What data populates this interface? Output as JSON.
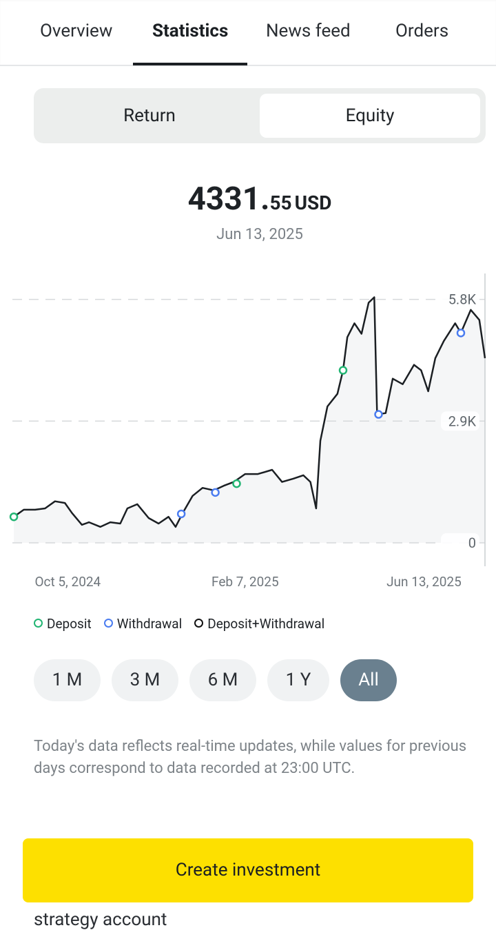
{
  "tabs": [
    "Overview",
    "Statistics",
    "News feed",
    "Orders"
  ],
  "active_tab": "Statistics",
  "toggle": {
    "options": [
      "Return",
      "Equity"
    ],
    "selected": "Equity"
  },
  "headline": {
    "value_main": "4331.",
    "value_fraction": "55",
    "currency": "USD",
    "date": "Jun 13, 2025"
  },
  "chart_data": {
    "type": "line",
    "color": "#1b1f23",
    "x": [
      "2024-08-28",
      "2024-09-04",
      "2024-09-12",
      "2024-09-19",
      "2024-09-26",
      "2024-10-03",
      "2024-10-08",
      "2024-10-15",
      "2024-10-20",
      "2024-10-28",
      "2024-11-04",
      "2024-11-11",
      "2024-11-16",
      "2024-11-23",
      "2024-12-01",
      "2024-12-08",
      "2024-12-15",
      "2024-12-20",
      "2024-12-25",
      "2025-01-01",
      "2025-01-08",
      "2025-01-16",
      "2025-01-23",
      "2025-01-30",
      "2025-02-07",
      "2025-02-16",
      "2025-02-26",
      "2025-03-05",
      "2025-03-13",
      "2025-03-20",
      "2025-03-25",
      "2025-03-29",
      "2025-04-01",
      "2025-04-06",
      "2025-04-13",
      "2025-04-17",
      "2025-04-20",
      "2025-04-25",
      "2025-04-30",
      "2025-05-05",
      "2025-05-09",
      "2025-05-11",
      "2025-05-17",
      "2025-05-22",
      "2025-05-29",
      "2025-06-06",
      "2025-06-11",
      "2025-06-16",
      "2025-06-21",
      "2025-06-27",
      "2025-07-05",
      "2025-07-09",
      "2025-07-16",
      "2025-07-22",
      "2025-07-26"
    ],
    "values": [
      620,
      790,
      790,
      820,
      990,
      950,
      710,
      430,
      490,
      380,
      490,
      460,
      820,
      920,
      590,
      460,
      620,
      380,
      710,
      1120,
      1310,
      1250,
      1360,
      1450,
      1640,
      1640,
      1740,
      1450,
      1530,
      1610,
      1450,
      820,
      2430,
      3250,
      3550,
      4110,
      4900,
      5230,
      4980,
      5720,
      5850,
      3060,
      3090,
      3910,
      3780,
      4240,
      4110,
      3610,
      4400,
      4810,
      5230,
      5000,
      5550,
      5310,
      4400
    ],
    "xlim": [
      "2024-08-27",
      "2025-07-26"
    ],
    "xticks": [
      {
        "value": "2024-10-05",
        "label": "Oct 5, 2024"
      },
      {
        "value": "2025-02-07",
        "label": "Feb 7, 2025"
      },
      {
        "value": "2025-06-13",
        "label": "Jun 13, 2025"
      }
    ],
    "ylim": [
      0,
      6400
    ],
    "yticks": [
      0,
      {
        "value": 2900,
        "label": "2.9K"
      },
      {
        "value": 5800,
        "label": "5.8K"
      }
    ],
    "grid": true,
    "markers": [
      {
        "name": "Deposit",
        "color": "#22b573",
        "x": [
          "2024-08-28",
          "2025-02-01",
          "2025-04-17"
        ],
        "values": [
          620,
          1410,
          4110
        ]
      },
      {
        "name": "Withdrawal",
        "color": "#4a7cf0",
        "x": [
          "2024-12-24",
          "2025-01-17",
          "2025-05-12",
          "2025-07-09"
        ],
        "values": [
          690,
          1200,
          3060,
          5000
        ]
      },
      {
        "name": "Deposit+Withdrawal",
        "color": "#111111",
        "x": [],
        "values": []
      }
    ]
  },
  "periods": [
    "1 M",
    "3 M",
    "6 M",
    "1 Y",
    "All"
  ],
  "selected_period": "All",
  "note": "Today's data reflects real-time updates, while values for previous days correspond to data recorded at 23:00 UTC.",
  "footer_text": "strategy account",
  "button": "Create investment"
}
